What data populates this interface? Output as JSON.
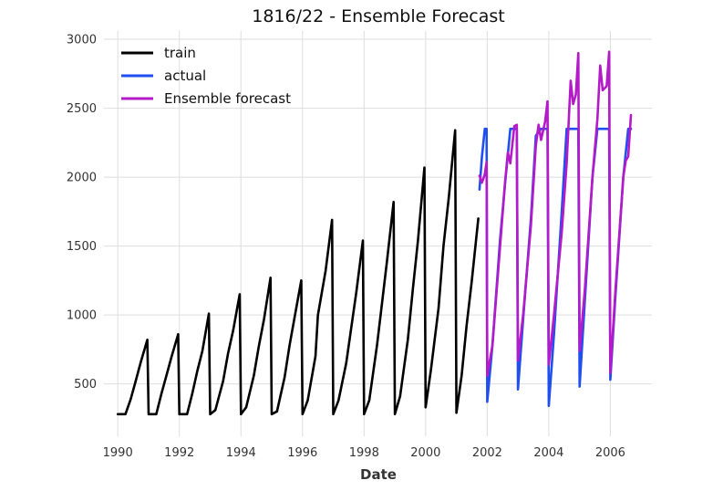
{
  "chart_data": {
    "type": "line",
    "title": "1816/22 - Ensemble Forecast",
    "xlabel": "Date",
    "ylabel": "",
    "xlim": [
      1989.55,
      2007.35
    ],
    "ylim": [
      120,
      3060
    ],
    "x_ticks": [
      1990,
      1992,
      1994,
      1996,
      1998,
      2000,
      2002,
      2004,
      2006
    ],
    "x_tick_labels": [
      "1990",
      "1992",
      "1994",
      "1996",
      "1998",
      "2000",
      "2002",
      "2004",
      "2006"
    ],
    "y_ticks": [
      500,
      1000,
      1500,
      2000,
      2500,
      3000
    ],
    "y_tick_labels": [
      "500",
      "1000",
      "1500",
      "2000",
      "2500",
      "3000"
    ],
    "grid": true,
    "legend_position": "top-left",
    "series": [
      {
        "name": "train",
        "color": "#000000",
        "points": [
          [
            1990.0,
            280
          ],
          [
            1990.25,
            280
          ],
          [
            1990.42,
            390
          ],
          [
            1990.58,
            520
          ],
          [
            1990.75,
            660
          ],
          [
            1990.96,
            820
          ],
          [
            1991.0,
            280
          ],
          [
            1991.25,
            280
          ],
          [
            1991.42,
            430
          ],
          [
            1991.58,
            560
          ],
          [
            1991.75,
            700
          ],
          [
            1991.96,
            860
          ],
          [
            1992.0,
            280
          ],
          [
            1992.25,
            280
          ],
          [
            1992.42,
            430
          ],
          [
            1992.58,
            590
          ],
          [
            1992.75,
            740
          ],
          [
            1992.96,
            1010
          ],
          [
            1993.0,
            280
          ],
          [
            1993.17,
            310
          ],
          [
            1993.42,
            520
          ],
          [
            1993.58,
            720
          ],
          [
            1993.75,
            890
          ],
          [
            1993.96,
            1150
          ],
          [
            1994.0,
            280
          ],
          [
            1994.17,
            330
          ],
          [
            1994.42,
            560
          ],
          [
            1994.58,
            770
          ],
          [
            1994.75,
            970
          ],
          [
            1994.96,
            1270
          ],
          [
            1995.0,
            280
          ],
          [
            1995.17,
            300
          ],
          [
            1995.42,
            550
          ],
          [
            1995.58,
            780
          ],
          [
            1995.75,
            990
          ],
          [
            1995.96,
            1250
          ],
          [
            1996.0,
            280
          ],
          [
            1996.17,
            380
          ],
          [
            1996.42,
            700
          ],
          [
            1996.5,
            1000
          ],
          [
            1996.75,
            1320
          ],
          [
            1996.96,
            1690
          ],
          [
            1997.0,
            280
          ],
          [
            1997.17,
            380
          ],
          [
            1997.42,
            650
          ],
          [
            1997.58,
            900
          ],
          [
            1997.75,
            1170
          ],
          [
            1997.96,
            1540
          ],
          [
            1998.0,
            280
          ],
          [
            1998.17,
            380
          ],
          [
            1998.42,
            780
          ],
          [
            1998.58,
            1080
          ],
          [
            1998.75,
            1400
          ],
          [
            1998.96,
            1820
          ],
          [
            1999.0,
            280
          ],
          [
            1999.17,
            410
          ],
          [
            1999.42,
            820
          ],
          [
            1999.58,
            1180
          ],
          [
            1999.75,
            1540
          ],
          [
            1999.96,
            2070
          ],
          [
            2000.0,
            330
          ],
          [
            2000.17,
            600
          ],
          [
            2000.42,
            1050
          ],
          [
            2000.58,
            1500
          ],
          [
            2000.75,
            1850
          ],
          [
            2000.96,
            2340
          ],
          [
            2001.0,
            290
          ],
          [
            2001.17,
            560
          ],
          [
            2001.33,
            920
          ],
          [
            2001.5,
            1250
          ],
          [
            2001.71,
            1700
          ]
        ]
      },
      {
        "name": "actual",
        "color": "#1f4ff0",
        "points": [
          [
            2001.75,
            1910
          ],
          [
            2001.83,
            2150
          ],
          [
            2001.92,
            2350
          ],
          [
            2001.98,
            2350
          ],
          [
            2002.0,
            370
          ],
          [
            2002.17,
            780
          ],
          [
            2002.42,
            1550
          ],
          [
            2002.58,
            1950
          ],
          [
            2002.75,
            2350
          ],
          [
            2002.96,
            2350
          ],
          [
            2003.0,
            460
          ],
          [
            2003.17,
            980
          ],
          [
            2003.42,
            1700
          ],
          [
            2003.58,
            2300
          ],
          [
            2003.75,
            2350
          ],
          [
            2003.96,
            2350
          ],
          [
            2004.0,
            340
          ],
          [
            2004.17,
            860
          ],
          [
            2004.42,
            1750
          ],
          [
            2004.58,
            2350
          ],
          [
            2004.75,
            2350
          ],
          [
            2004.96,
            2350
          ],
          [
            2005.0,
            480
          ],
          [
            2005.17,
            1100
          ],
          [
            2005.42,
            2000
          ],
          [
            2005.58,
            2350
          ],
          [
            2005.75,
            2350
          ],
          [
            2005.96,
            2350
          ],
          [
            2006.0,
            530
          ],
          [
            2006.17,
            1160
          ],
          [
            2006.42,
            2000
          ],
          [
            2006.58,
            2350
          ],
          [
            2006.67,
            2350
          ]
        ]
      },
      {
        "name": "Ensemble forecast",
        "color": "#b41ac8",
        "points": [
          [
            2001.75,
            2010
          ],
          [
            2001.83,
            1960
          ],
          [
            2001.92,
            2020
          ],
          [
            2001.98,
            2110
          ],
          [
            2002.0,
            560
          ],
          [
            2002.17,
            780
          ],
          [
            2002.42,
            1500
          ],
          [
            2002.58,
            1960
          ],
          [
            2002.67,
            2180
          ],
          [
            2002.75,
            2100
          ],
          [
            2002.88,
            2370
          ],
          [
            2002.96,
            2380
          ],
          [
            2003.0,
            670
          ],
          [
            2003.17,
            1010
          ],
          [
            2003.42,
            1650
          ],
          [
            2003.58,
            2230
          ],
          [
            2003.67,
            2380
          ],
          [
            2003.75,
            2270
          ],
          [
            2003.88,
            2400
          ],
          [
            2003.96,
            2550
          ],
          [
            2004.0,
            640
          ],
          [
            2004.17,
            1000
          ],
          [
            2004.42,
            1600
          ],
          [
            2004.58,
            2100
          ],
          [
            2004.71,
            2700
          ],
          [
            2004.79,
            2530
          ],
          [
            2004.88,
            2600
          ],
          [
            2004.96,
            2900
          ],
          [
            2005.0,
            740
          ],
          [
            2005.17,
            1180
          ],
          [
            2005.42,
            2000
          ],
          [
            2005.58,
            2420
          ],
          [
            2005.67,
            2810
          ],
          [
            2005.75,
            2630
          ],
          [
            2005.88,
            2660
          ],
          [
            2005.96,
            2910
          ],
          [
            2006.0,
            580
          ],
          [
            2006.17,
            1200
          ],
          [
            2006.42,
            2000
          ],
          [
            2006.5,
            2120
          ],
          [
            2006.58,
            2150
          ],
          [
            2006.67,
            2450
          ]
        ]
      }
    ]
  }
}
